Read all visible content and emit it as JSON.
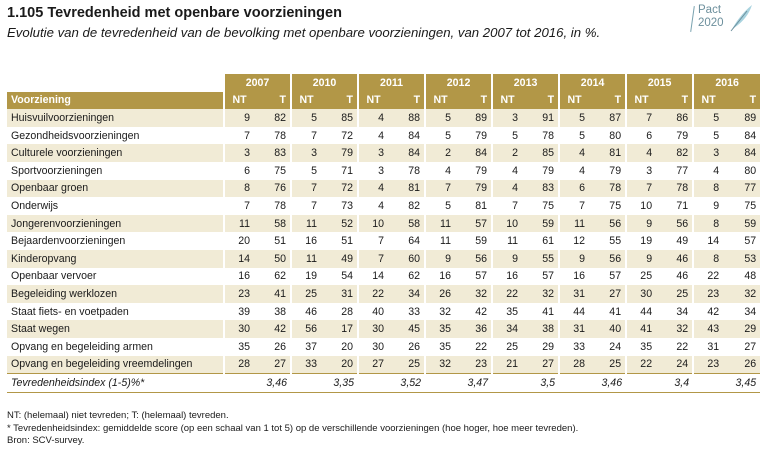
{
  "header": {
    "title": "1.105 Tevredenheid met openbare voorzieningen",
    "subtitle": "Evolutie van de tevredenheid van de bevolking met openbare voorzieningen, van 2007 tot 2016, in %."
  },
  "logo": {
    "line1": "Pact",
    "line2": "2020",
    "accent_color": "#6c8f9c"
  },
  "colors": {
    "header_bg": "#b29747",
    "row_shade": "#f1ebd6"
  },
  "table": {
    "years": [
      "2007",
      "2010",
      "2011",
      "2012",
      "2013",
      "2014",
      "2015",
      "2016"
    ],
    "row_header": "Voorziening",
    "nt_label": "NT",
    "t_label": "T",
    "rows": [
      {
        "label": "Huisvuilvoorzieningen",
        "v": [
          9,
          82,
          5,
          85,
          4,
          88,
          5,
          89,
          3,
          91,
          5,
          87,
          7,
          86,
          5,
          89
        ]
      },
      {
        "label": "Gezondheidsvoorzieningen",
        "v": [
          7,
          78,
          7,
          72,
          4,
          84,
          5,
          79,
          5,
          78,
          5,
          80,
          6,
          79,
          5,
          84
        ]
      },
      {
        "label": "Culturele  voorzieningen",
        "v": [
          3,
          83,
          3,
          79,
          3,
          84,
          2,
          84,
          2,
          85,
          4,
          81,
          4,
          82,
          3,
          84
        ]
      },
      {
        "label": "Sportvoorzieningen",
        "v": [
          6,
          75,
          5,
          71,
          3,
          78,
          4,
          79,
          4,
          79,
          4,
          79,
          3,
          77,
          4,
          80
        ]
      },
      {
        "label": "Openbaar  groen",
        "v": [
          8,
          76,
          7,
          72,
          4,
          81,
          7,
          79,
          4,
          83,
          6,
          78,
          7,
          78,
          8,
          77
        ]
      },
      {
        "label": "Onderwijs",
        "v": [
          7,
          78,
          7,
          73,
          4,
          82,
          5,
          81,
          7,
          75,
          7,
          75,
          10,
          71,
          9,
          75
        ]
      },
      {
        "label": "Jongerenvoorzieningen",
        "v": [
          11,
          58,
          11,
          52,
          10,
          58,
          11,
          57,
          10,
          59,
          11,
          56,
          9,
          56,
          8,
          59
        ]
      },
      {
        "label": "Bejaardenvoorzieningen",
        "v": [
          20,
          51,
          16,
          51,
          7,
          64,
          11,
          59,
          11,
          61,
          12,
          55,
          19,
          49,
          14,
          57
        ]
      },
      {
        "label": "Kinderopvang",
        "v": [
          14,
          50,
          11,
          49,
          7,
          60,
          9,
          56,
          9,
          55,
          9,
          56,
          9,
          46,
          8,
          53
        ]
      },
      {
        "label": "Openbaar  vervoer",
        "v": [
          16,
          62,
          19,
          54,
          14,
          62,
          16,
          57,
          16,
          57,
          16,
          57,
          25,
          46,
          22,
          48
        ]
      },
      {
        "label": "Begeleiding  werklozen",
        "v": [
          23,
          41,
          25,
          31,
          22,
          34,
          26,
          32,
          22,
          32,
          31,
          27,
          30,
          25,
          23,
          32
        ]
      },
      {
        "label": "Staat  fiets- en voetpaden",
        "v": [
          39,
          38,
          46,
          28,
          40,
          33,
          32,
          42,
          35,
          41,
          44,
          41,
          44,
          34,
          42,
          34
        ]
      },
      {
        "label": "Staat  wegen",
        "v": [
          30,
          42,
          56,
          17,
          30,
          45,
          35,
          36,
          34,
          38,
          31,
          40,
          41,
          32,
          43,
          29
        ]
      },
      {
        "label": "Opvang  en begeleiding armen",
        "v": [
          35,
          26,
          37,
          20,
          30,
          26,
          35,
          22,
          25,
          29,
          33,
          24,
          35,
          22,
          31,
          27
        ]
      },
      {
        "label": "Opvang  en begeleiding vreemdelingen",
        "v": [
          28,
          27,
          33,
          20,
          27,
          25,
          32,
          23,
          21,
          27,
          28,
          25,
          22,
          24,
          23,
          26
        ]
      }
    ],
    "index_row": {
      "label": "Tevredenheidsindex (1-5)%*",
      "values": [
        "3,46",
        "3,35",
        "3,52",
        "3,47",
        "3,5",
        "3,46",
        "3,4",
        "3,45"
      ]
    }
  },
  "notes": [
    "NT: (helemaal) niet tevreden; T: (helemaal) tevreden.",
    "* Tevredenheidsindex: gemiddelde score (op een schaal van 1 tot 5) op de verschillende voorzieningen (hoe hoger, hoe meer tevreden).",
    "Bron: SCV-survey."
  ]
}
